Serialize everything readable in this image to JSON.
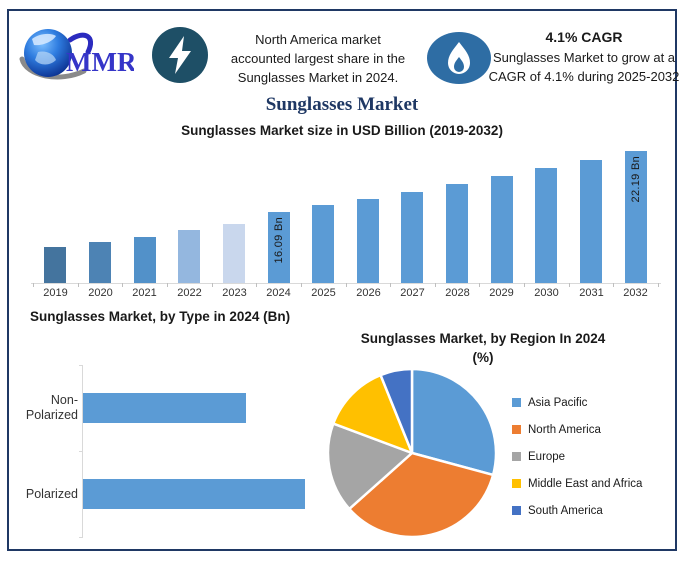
{
  "page": {
    "border_color": "#1F3864"
  },
  "header": {
    "logo_text": "MMR",
    "left_note_lines": [
      "North America market",
      "accounted largest share in the",
      "Sunglasses Market in 2024."
    ],
    "cagr_title": "4.1% CAGR",
    "cagr_note_lines": [
      "Sunglasses Market to grow at a",
      "CAGR of 4.1% during 2025-2032"
    ]
  },
  "title": "Sunglasses Market",
  "chart_data": [
    {
      "type": "bar",
      "title": "Sunglasses Market size in USD Billion (2019-2032)",
      "categories": [
        "2019",
        "2020",
        "2021",
        "2022",
        "2023",
        "2024",
        "2025",
        "2026",
        "2027",
        "2028",
        "2029",
        "2030",
        "2031",
        "2032"
      ],
      "values": [
        12.6,
        13.1,
        13.6,
        14.3,
        14.9,
        16.09,
        16.75,
        17.44,
        18.15,
        18.9,
        19.67,
        20.48,
        21.32,
        22.19
      ],
      "bar_labels": [
        "",
        "",
        "",
        "",
        "",
        "16.09 Bn",
        "",
        "",
        "",
        "",
        "",
        "",
        "",
        "22.19 Bn"
      ],
      "bar_colors": [
        "#44749E",
        "#4D83B4",
        "#5291C9",
        "#94B7DF",
        "#C9D7ED",
        "#5B9BD5",
        "#5B9BD5",
        "#5B9BD5",
        "#5B9BD5",
        "#5B9BD5",
        "#5B9BD5",
        "#5B9BD5",
        "#5B9BD5",
        "#5B9BD5"
      ],
      "xlabel": "",
      "ylabel": "",
      "ylim": [
        9,
        23.5
      ],
      "grid": false,
      "legend": false
    },
    {
      "type": "bar",
      "orientation": "horizontal",
      "title": "Sunglasses Market, by Type in 2024 (Bn)",
      "categories": [
        "Non-Polarized",
        "Polarized"
      ],
      "values": [
        6.8,
        9.3
      ],
      "bar_color": "#5B9BD5",
      "xlim": [
        0,
        11
      ],
      "grid": false,
      "legend": false
    },
    {
      "type": "pie",
      "title": "Sunglasses Market, by Region In 2024 (%)",
      "title_lines": [
        "Sunglasses Market, by Region In 2024",
        "(%)"
      ],
      "labels": [
        "Asia Pacific",
        "North America",
        "Europe",
        "Middle East and Africa",
        "South America"
      ],
      "values": [
        29.2,
        34.2,
        17.3,
        13.2,
        6.1
      ],
      "colors": [
        "#5B9BD5",
        "#ED7D31",
        "#A5A5A5",
        "#FFC000",
        "#4472C4"
      ],
      "start_angle_deg": 0,
      "legend_position": "right"
    }
  ]
}
